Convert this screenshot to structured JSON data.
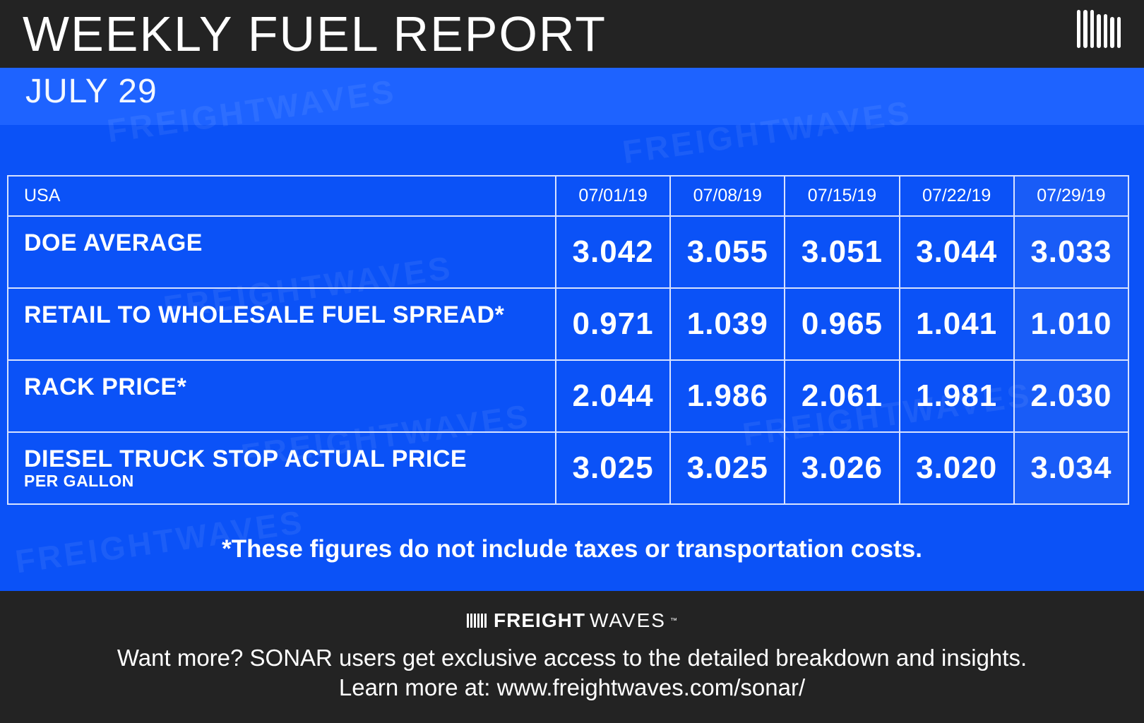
{
  "header": {
    "title": "WEEKLY FUEL REPORT",
    "date": "JULY 29"
  },
  "watermark": "FREIGHTWAVES",
  "table": {
    "region": "USA",
    "columns": [
      "07/01/19",
      "07/08/19",
      "07/15/19",
      "07/22/19",
      "07/29/19"
    ],
    "rows": [
      {
        "label": "DOE AVERAGE",
        "sublabel": "",
        "values": [
          "3.042",
          "3.055",
          "3.051",
          "3.044",
          "3.033"
        ]
      },
      {
        "label": "RETAIL TO WHOLESALE FUEL SPREAD*",
        "sublabel": "",
        "values": [
          "0.971",
          "1.039",
          "0.965",
          "1.041",
          "1.010"
        ]
      },
      {
        "label": "RACK PRICE*",
        "sublabel": "",
        "values": [
          "2.044",
          "1.986",
          "2.061",
          "1.981",
          "2.030"
        ]
      },
      {
        "label": "DIESEL TRUCK STOP ACTUAL PRICE",
        "sublabel": "PER GALLON",
        "values": [
          "3.025",
          "3.025",
          "3.026",
          "3.020",
          "3.034"
        ]
      }
    ]
  },
  "note": "*These figures do not include taxes or transportation costs.",
  "footer": {
    "brand_bold": "FREIGHT",
    "brand_light": "WAVES",
    "brand_tm": "™",
    "line1": "Want more? SONAR users get exclusive access to the detailed breakdown and insights.",
    "line2": "Learn more at: www.freightwaves.com/sonar/"
  },
  "colors": {
    "dark": "#232323",
    "blue": "#0b52f7",
    "band": "#1e63ff"
  }
}
